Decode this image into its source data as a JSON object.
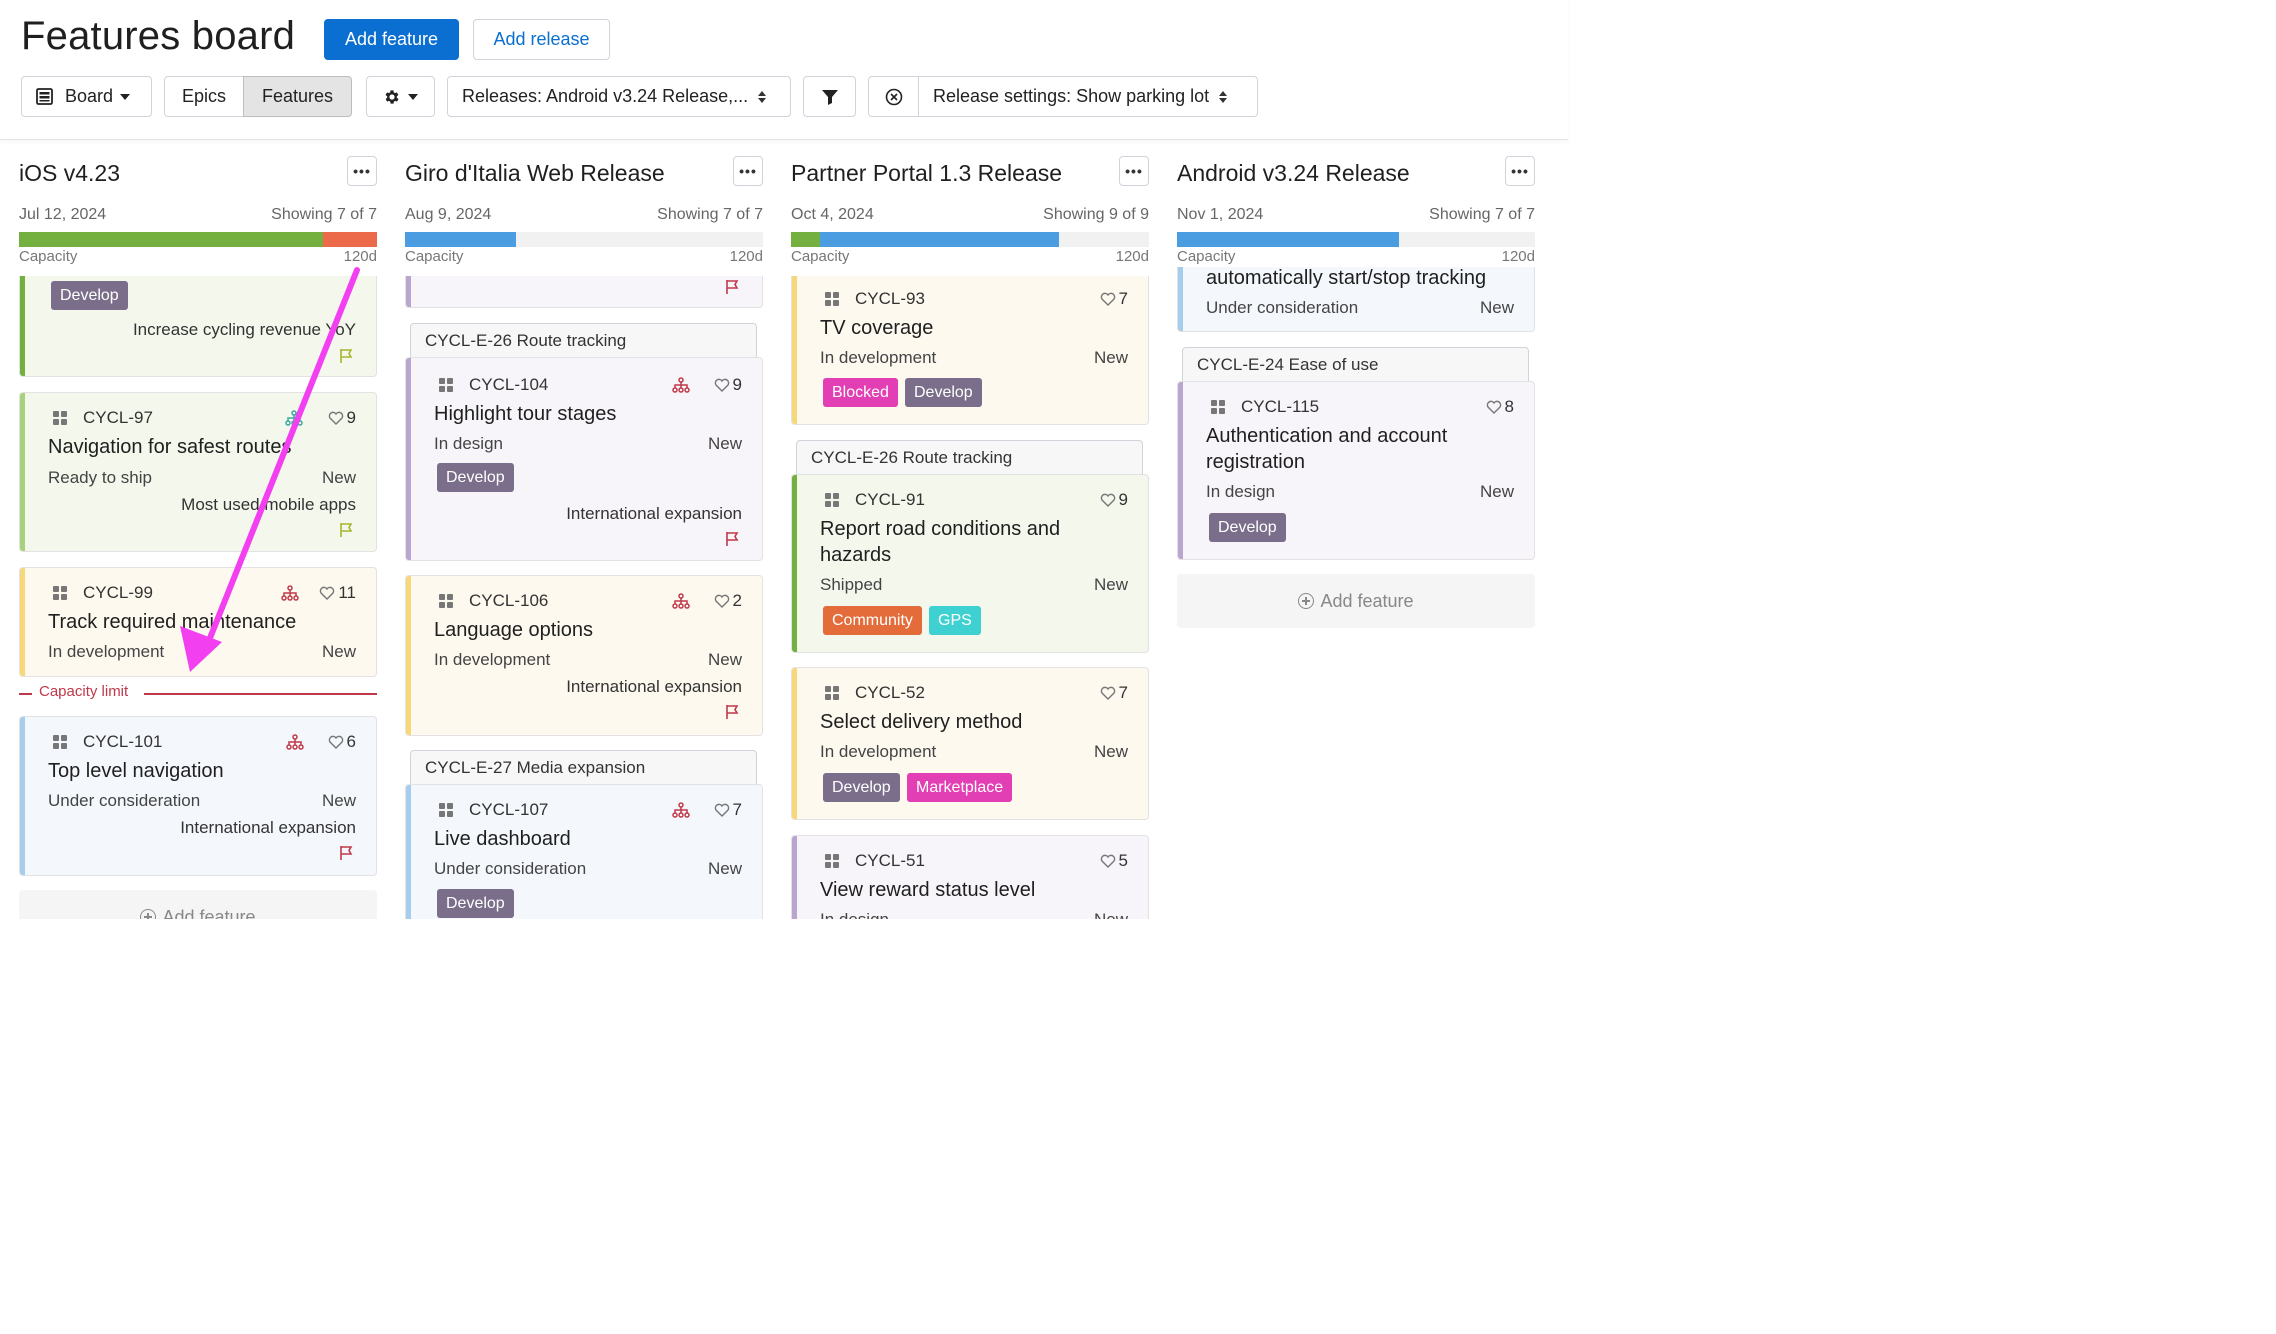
{
  "header": {
    "title": "Features board",
    "add_feature_label": "Add feature",
    "add_release_label": "Add release"
  },
  "toolbar": {
    "board_label": "Board",
    "epics_label": "Epics",
    "features_label": "Features",
    "releases_filter": "Releases: Android v3.24 Release,...",
    "release_settings": "Release settings: Show parking lot"
  },
  "colors": {
    "primary": "#0a6fd0",
    "capacity_green": "#73b03f",
    "capacity_red": "#ec6a4a",
    "capacity_blue": "#4a9de0",
    "capacity_limit": "#c0394b",
    "tag_develop": "#7a6e8a",
    "tag_blocked": "#e23fb4",
    "tag_marketplace": "#e23fb4",
    "tag_community": "#e36c3a",
    "tag_gps": "#3fd1d1",
    "arrow": "#f23ff0"
  },
  "columns": [
    {
      "title": "iOS v4.23",
      "date": "Jul 12, 2024",
      "showing": "Showing 7 of 7",
      "capacity_label": "Capacity",
      "capacity_value": "120d",
      "capacity_used_fraction": 0.85,
      "capacity_over_fraction": 0.15,
      "cards": [
        {
          "tag": "Develop",
          "goal": "Increase cycling revenue YoY"
        },
        {
          "id": "CYCL-97",
          "title": "Navigation for safest routes",
          "status": "Ready to ship",
          "new": "New",
          "goal": "Most used mobile apps",
          "score": "9"
        },
        {
          "id": "CYCL-99",
          "title": "Track required maintenance",
          "status": "In development",
          "new": "New",
          "score": "11"
        },
        {
          "id": "CYCL-101",
          "title": "Top level navigation",
          "status": "Under consideration",
          "new": "New",
          "goal": "International expansion",
          "score": "6"
        }
      ],
      "capacity_limit_label": "Capacity limit",
      "add_feature_label": "Add feature"
    },
    {
      "title": "Giro d'Italia Web Release",
      "date": "Aug 9, 2024",
      "showing": "Showing 7 of 7",
      "capacity_label": "Capacity",
      "capacity_value": "120d",
      "capacity_used_fraction": 0.31,
      "epics": [
        "CYCL-E-26 Route tracking",
        "CYCL-E-27 Media expansion"
      ],
      "cards": [
        {
          "id": "CYCL-104",
          "title": "Highlight tour stages",
          "status": "In design",
          "new": "New",
          "tag": "Develop",
          "goal": "International expansion",
          "score": "9"
        },
        {
          "id": "CYCL-106",
          "title": "Language options",
          "status": "In development",
          "new": "New",
          "goal": "International expansion",
          "score": "2"
        },
        {
          "id": "CYCL-107",
          "title": "Live dashboard",
          "status": "Under consideration",
          "new": "New",
          "tag": "Develop",
          "score": "7"
        }
      ]
    },
    {
      "title": "Partner Portal 1.3 Release",
      "date": "Oct 4, 2024",
      "showing": "Showing 9 of 9",
      "capacity_label": "Capacity",
      "capacity_value": "120d",
      "capacity_green_fraction": 0.08,
      "capacity_blue_fraction": 0.67,
      "epics": [
        "CYCL-E-26 Route tracking"
      ],
      "cards": [
        {
          "id": "CYCL-93",
          "title": "TV coverage",
          "status": "In development",
          "new": "New",
          "tags": [
            "Blocked",
            "Develop"
          ],
          "score": "7"
        },
        {
          "id": "CYCL-91",
          "title": "Report road conditions and hazards",
          "status": "Shipped",
          "new": "New",
          "tags": [
            "Community",
            "GPS"
          ],
          "score": "9"
        },
        {
          "id": "CYCL-52",
          "title": "Select delivery method",
          "status": "In development",
          "new": "New",
          "tags": [
            "Develop",
            "Marketplace"
          ],
          "score": "7"
        },
        {
          "id": "CYCL-51",
          "title": "View reward status level",
          "status": "In design",
          "new": "New",
          "score": "5"
        }
      ]
    },
    {
      "title": "Android v3.24 Release",
      "date": "Nov 1, 2024",
      "showing": "Showing 7 of 7",
      "capacity_label": "Capacity",
      "capacity_value": "120d",
      "capacity_used_fraction": 0.62,
      "epics": [
        "CYCL-E-24 Ease of use"
      ],
      "cards": [
        {
          "title": "automatically start/stop tracking",
          "status": "Under consideration",
          "new": "New"
        },
        {
          "id": "CYCL-115",
          "title": "Authentication and account registration",
          "status": "In design",
          "new": "New",
          "tag": "Develop",
          "score": "8"
        }
      ],
      "add_feature_label": "Add feature"
    }
  ]
}
